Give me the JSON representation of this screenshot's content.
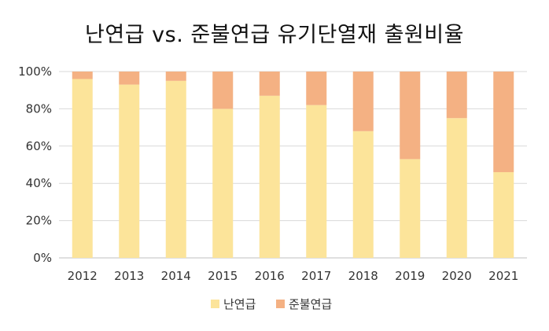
{
  "chart_data": {
    "type": "bar",
    "stacked_percent": true,
    "title": "난연급 vs. 준불연급 유기단열재 출원비율",
    "categories": [
      "2012",
      "2013",
      "2014",
      "2015",
      "2016",
      "2017",
      "2018",
      "2019",
      "2020",
      "2021"
    ],
    "series": [
      {
        "name": "난연급",
        "color": "#FCE49A",
        "values": [
          96,
          93,
          95,
          80,
          87,
          82,
          68,
          53,
          75,
          46
        ]
      },
      {
        "name": "준불연급",
        "color": "#F4B183",
        "values": [
          4,
          7,
          5,
          20,
          13,
          18,
          32,
          47,
          25,
          54
        ]
      }
    ],
    "ylim": [
      0,
      100
    ],
    "yticks": [
      "0%",
      "20%",
      "40%",
      "60%",
      "80%",
      "100%"
    ],
    "grid": true,
    "legend": "bottom"
  }
}
